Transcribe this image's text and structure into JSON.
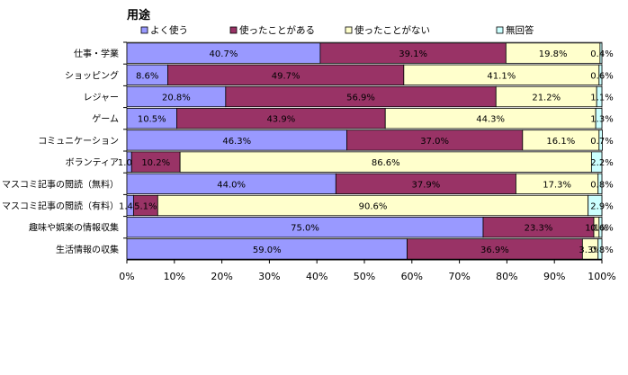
{
  "chart_data": {
    "type": "bar",
    "orientation": "horizontal",
    "stacked": "percent",
    "title": "用途",
    "categories": [
      "仕事・学業",
      "ショッピング",
      "レジャー",
      "ゲーム",
      "コミュニケーション",
      "ボランティア",
      "マスコミ記事の閲読（無料）",
      "マスコミ記事の閲読（有料）",
      "趣味や娯楽の情報収集",
      "生活情報の収集"
    ],
    "series": [
      {
        "name": "よく使う",
        "color": "#9999ff",
        "values": [
          40.7,
          8.6,
          20.8,
          10.5,
          46.3,
          1.0,
          44.0,
          1.4,
          75.0,
          59.0
        ]
      },
      {
        "name": "使ったことがある",
        "color": "#993366",
        "values": [
          39.1,
          49.7,
          56.9,
          43.9,
          37.0,
          10.2,
          37.9,
          5.1,
          23.3,
          36.9
        ]
      },
      {
        "name": "使ったことがない",
        "color": "#ffffcc",
        "values": [
          19.8,
          41.1,
          21.2,
          44.3,
          16.1,
          86.6,
          17.3,
          90.6,
          1.1,
          3.3
        ]
      },
      {
        "name": "無回答",
        "color": "#ccffff",
        "values": [
          0.4,
          0.6,
          1.1,
          1.3,
          0.7,
          2.2,
          0.8,
          2.9,
          0.6,
          0.8
        ]
      }
    ],
    "data_labels": [
      [
        "40.7%",
        "39.1%",
        "19.8%",
        "0.4%"
      ],
      [
        "8.6%",
        "49.7%",
        "41.1%",
        "0.6%"
      ],
      [
        "20.8%",
        "56.9%",
        "21.2%",
        "1.1%"
      ],
      [
        "10.5%",
        "43.9%",
        "44.3%",
        "1.3%"
      ],
      [
        "46.3%",
        "37.0%",
        "16.1%",
        "0.7%"
      ],
      [
        "1.0%",
        "10.2%",
        "86.6%",
        "2.2%"
      ],
      [
        "44.0%",
        "37.9%",
        "17.3%",
        "0.8%"
      ],
      [
        "1.4%",
        "5.1%",
        "90.6%",
        "2.9%"
      ],
      [
        "75.0%",
        "23.3%",
        "1.1%",
        "0.6%"
      ],
      [
        "59.0%",
        "36.9%",
        "3.3%",
        "0.8%"
      ]
    ],
    "xlim": [
      0,
      100
    ],
    "xticks": [
      "0%",
      "10%",
      "20%",
      "30%",
      "40%",
      "50%",
      "60%",
      "70%",
      "80%",
      "90%",
      "100%"
    ],
    "legend_position": "top",
    "grid": false
  }
}
